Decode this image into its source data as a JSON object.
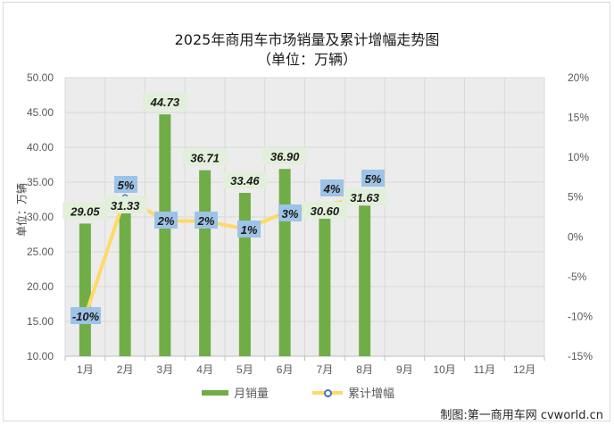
{
  "chart_data": {
    "type": "bar+line",
    "title": "2025年商用车市场销量及累计增幅走势图",
    "subtitle": "（单位：万辆）",
    "xlabel": "",
    "ylabel": "单位：万辆",
    "categories": [
      "1月",
      "2月",
      "3月",
      "4月",
      "5月",
      "6月",
      "7月",
      "8月",
      "9月",
      "10月",
      "11月",
      "12月"
    ],
    "series": [
      {
        "name": "月销量",
        "type": "bar",
        "axis": "left",
        "color": "#70ad47",
        "values": [
          29.05,
          31.33,
          44.73,
          36.71,
          33.46,
          36.9,
          30.6,
          31.63,
          null,
          null,
          null,
          null
        ],
        "labels": [
          "29.05",
          "31.33",
          "44.73",
          "36.71",
          "33.46",
          "36.90",
          "30.60",
          "31.63"
        ]
      },
      {
        "name": "累计增幅",
        "type": "line",
        "axis": "right",
        "color": "#ffd966",
        "marker_color": "#4472c4",
        "values": [
          -10,
          5,
          2,
          2,
          1,
          3,
          4,
          5,
          null,
          null,
          null,
          null
        ],
        "labels": [
          "-10%",
          "5%",
          "2%",
          "2%",
          "1%",
          "3%",
          "4%",
          "5%"
        ]
      }
    ],
    "ylim": [
      10,
      50
    ],
    "yticks": [
      "10.00",
      "15.00",
      "20.00",
      "25.00",
      "30.00",
      "35.00",
      "40.00",
      "45.00",
      "50.00"
    ],
    "y2lim": [
      -15,
      20
    ],
    "y2ticks": [
      "-15%",
      "-10%",
      "-5%",
      "0%",
      "5%",
      "10%",
      "15%",
      "20%"
    ],
    "grid": true,
    "legend_position": "bottom"
  },
  "legend": {
    "bar_label": "月销量",
    "line_label": "累计增幅"
  },
  "source": "制图:第一商用车网 cvworld.cn"
}
